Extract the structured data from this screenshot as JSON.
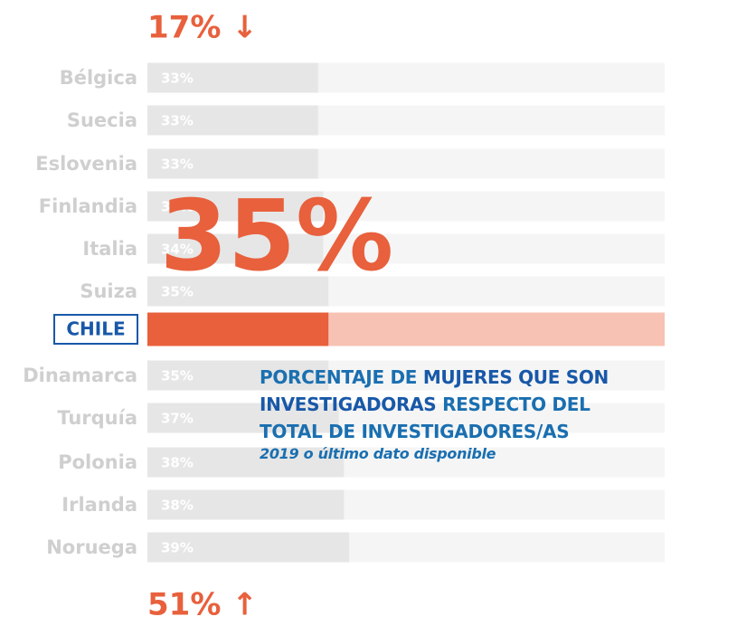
{
  "chart_data": {
    "type": "bar",
    "categories": [
      "Bélgica",
      "Suecia",
      "Eslovenia",
      "Finlandia",
      "Italia",
      "Suiza",
      "CHILE",
      "Dinamarca",
      "Turquía",
      "Polonia",
      "Irlanda",
      "Noruega"
    ],
    "values": [
      33,
      33,
      33,
      34,
      34,
      35,
      35,
      35,
      37,
      38,
      38,
      39
    ],
    "value_labels": [
      "33%",
      "33%",
      "33%",
      "34%",
      "34%",
      "35%",
      null,
      "35%",
      "37%",
      "38%",
      "38%",
      "39%"
    ],
    "xlim": [
      0,
      100
    ],
    "color": "#e6e6e6",
    "track_color": "#f5f5f5",
    "highlight": "CHILE",
    "highlight_color": "#e8603c",
    "highlight_track_color": "#f7c2b3",
    "annotations": {
      "min": "17% ↓",
      "max": "51% ↑",
      "highlight_value": "35%"
    },
    "title_parts": [
      "PORCENTAJE DE",
      "MUJERES QUE SON",
      "INVESTIGADORAS",
      "RESPECTO DEL",
      "TOTAL DE INVESTIGADORES/AS"
    ],
    "subtitle": "2019 o último dato disponible"
  }
}
